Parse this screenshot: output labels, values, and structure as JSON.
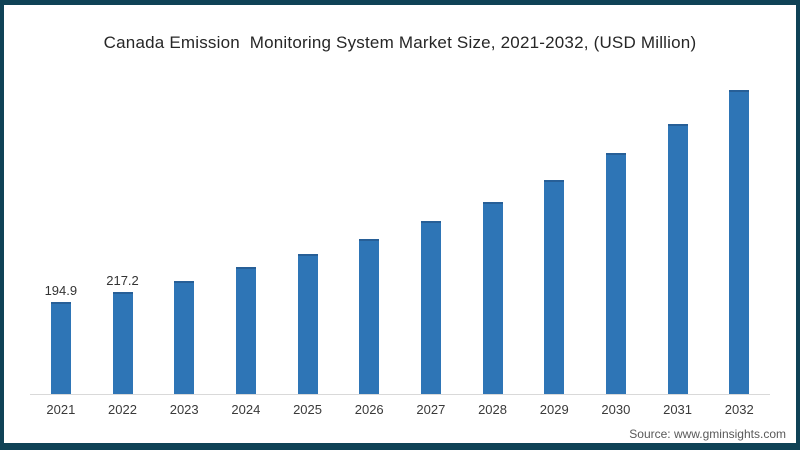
{
  "frame": {
    "border_color": "#0f4256",
    "background": "#ffffff"
  },
  "chart_data": {
    "type": "bar",
    "title": "Canada Emission  Monitoring System Market Size, 2021-2032, (USD Million)",
    "categories": [
      "2021",
      "2022",
      "2023",
      "2024",
      "2025",
      "2026",
      "2027",
      "2028",
      "2029",
      "2030",
      "2031",
      "2032"
    ],
    "values": [
      194.9,
      217.2,
      241,
      270,
      298,
      330,
      368,
      409,
      456,
      513,
      575,
      647
    ],
    "data_labels": [
      "194.9",
      "217.2",
      "",
      "",
      "",
      "",
      "",
      "",
      "",
      "",
      "",
      ""
    ],
    "xlabel": "",
    "ylabel": "",
    "ylim": [
      0,
      650
    ],
    "grid": false,
    "legend": false,
    "bar_color": "#2e75b6",
    "axis_line_color": "#d9d9d9"
  },
  "source": "Source: www.gminsights.com"
}
